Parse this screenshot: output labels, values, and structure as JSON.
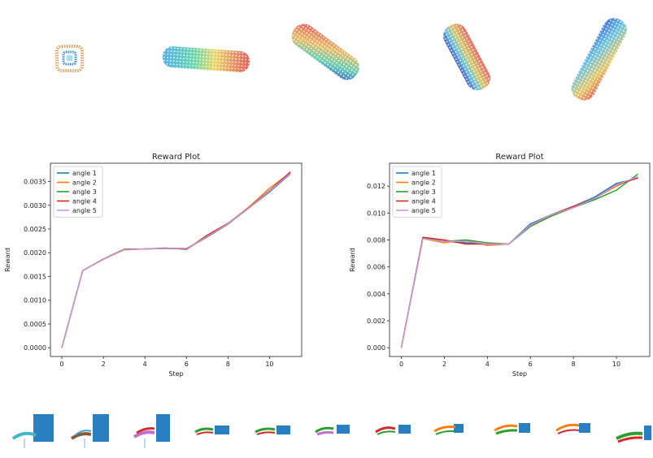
{
  "chart_data": [
    {
      "type": "line",
      "title": "Reward Plot",
      "xlabel": "Step",
      "ylabel": "Reward",
      "xlim": [
        -0.55,
        11.55
      ],
      "ylim": [
        -0.000185,
        0.003885
      ],
      "xticks": [
        0,
        2,
        4,
        6,
        8,
        10
      ],
      "xtick_labels": [
        "0",
        "2",
        "4",
        "6",
        "8",
        "10"
      ],
      "yticks": [
        0,
        0.0005,
        0.001,
        0.0015,
        0.002,
        0.0025,
        0.003,
        0.0035
      ],
      "ytick_labels": [
        "0.0000",
        "0.0005",
        "0.0010",
        "0.0015",
        "0.0020",
        "0.0025",
        "0.0030",
        "0.0035"
      ],
      "legend_position": "upper-left",
      "x": [
        0,
        1,
        2,
        3,
        4,
        5,
        6,
        7,
        8,
        9,
        10,
        11
      ],
      "series": [
        {
          "name": "angle 1",
          "color": "#1f77b4",
          "values": [
            0,
            0.00162,
            0.00187,
            0.00207,
            0.00208,
            0.00209,
            0.00209,
            0.00234,
            0.00261,
            0.00294,
            0.00328,
            0.00366
          ]
        },
        {
          "name": "angle 2",
          "color": "#ff7f0e",
          "values": [
            0,
            0.00162,
            0.00186,
            0.00206,
            0.00208,
            0.00209,
            0.00208,
            0.00233,
            0.0026,
            0.00296,
            0.00336,
            0.00368
          ]
        },
        {
          "name": "angle 3",
          "color": "#2ca02c",
          "values": [
            0,
            0.00162,
            0.00187,
            0.00207,
            0.00208,
            0.00209,
            0.00209,
            0.00233,
            0.0026,
            0.00294,
            0.0033,
            0.00369
          ]
        },
        {
          "name": "angle 4",
          "color": "#d62728",
          "values": [
            0,
            0.00162,
            0.00187,
            0.00207,
            0.00208,
            0.0021,
            0.00207,
            0.00237,
            0.00262,
            0.00295,
            0.00331,
            0.0037
          ]
        },
        {
          "name": "angle 5",
          "color": "#c49bde",
          "values": [
            0,
            0.00162,
            0.00187,
            0.00206,
            0.00208,
            0.00209,
            0.00209,
            0.00234,
            0.00261,
            0.00294,
            0.0033,
            0.00367
          ]
        }
      ]
    },
    {
      "type": "line",
      "title": "Reward Plot",
      "xlabel": "Step",
      "ylabel": "Reward",
      "xlim": [
        -0.55,
        11.55
      ],
      "ylim": [
        -0.00065,
        0.0137
      ],
      "xticks": [
        0,
        2,
        4,
        6,
        8,
        10
      ],
      "xtick_labels": [
        "0",
        "2",
        "4",
        "6",
        "8",
        "10"
      ],
      "yticks": [
        0,
        0.002,
        0.004,
        0.006,
        0.008,
        0.01,
        0.012
      ],
      "ytick_labels": [
        "0.000",
        "0.002",
        "0.004",
        "0.006",
        "0.008",
        "0.010",
        "0.012"
      ],
      "legend_position": "upper-left",
      "x": [
        0,
        1,
        2,
        3,
        4,
        5,
        6,
        7,
        8,
        9,
        10,
        11
      ],
      "series": [
        {
          "name": "angle 1",
          "color": "#1f77b4",
          "values": [
            0,
            0.0081,
            0.0079,
            0.0078,
            0.0077,
            0.0077,
            0.0092,
            0.0099,
            0.0105,
            0.0112,
            0.0122,
            0.0126
          ]
        },
        {
          "name": "angle 2",
          "color": "#ff7f0e",
          "values": [
            0,
            0.0081,
            0.0078,
            0.008,
            0.0076,
            0.0077,
            0.0091,
            0.0098,
            0.0104,
            0.0111,
            0.012,
            0.0127
          ]
        },
        {
          "name": "angle 3",
          "color": "#2ca02c",
          "values": [
            0,
            0.0082,
            0.0079,
            0.008,
            0.0078,
            0.0077,
            0.009,
            0.0098,
            0.0104,
            0.011,
            0.0117,
            0.0129
          ]
        },
        {
          "name": "angle 4",
          "color": "#d62728",
          "values": [
            0,
            0.0082,
            0.008,
            0.0077,
            0.0077,
            0.0077,
            0.0091,
            0.0099,
            0.0105,
            0.0111,
            0.0121,
            0.0126
          ]
        },
        {
          "name": "angle 5",
          "color": "#c49bde",
          "values": [
            0,
            0.0081,
            0.0079,
            0.0079,
            0.0077,
            0.0077,
            0.0091,
            0.0099,
            0.0104,
            0.0111,
            0.0121,
            0.0127
          ]
        }
      ]
    }
  ]
}
